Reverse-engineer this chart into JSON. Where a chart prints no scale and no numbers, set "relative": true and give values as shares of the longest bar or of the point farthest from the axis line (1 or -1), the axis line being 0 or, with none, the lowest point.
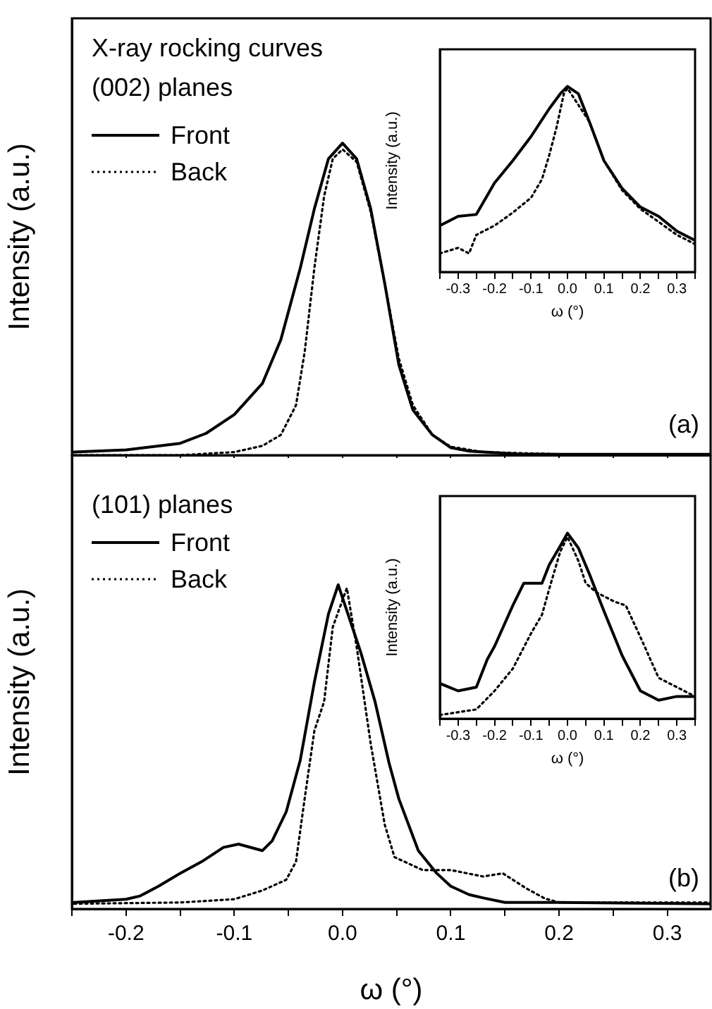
{
  "chart_data": [
    {
      "type": "line",
      "title": "X-ray rocking curves",
      "subtitle": "(002) planes",
      "ylabel": "Intensity (a.u.)",
      "relative": true,
      "legend": "top left",
      "tick_labels": false,
      "marker": "none",
      "annotations": [
        "(a)"
      ],
      "xlim": [
        -0.25,
        0.34
      ],
      "xticks": [
        {
          "value": -0.25,
          "label": null
        },
        {
          "value": -0.2,
          "label": null
        },
        {
          "value": -0.15,
          "label": null
        },
        {
          "value": -0.1,
          "label": null
        },
        {
          "value": -0.05,
          "label": null
        },
        {
          "value": 0,
          "label": null
        },
        {
          "value": 0.05,
          "label": null
        },
        {
          "value": 0.1,
          "label": null
        },
        {
          "value": 0.15,
          "label": null
        },
        {
          "value": 0.2,
          "label": null
        },
        {
          "value": 0.25,
          "label": null
        },
        {
          "value": 0.3,
          "label": null
        }
      ],
      "series": [
        {
          "name": "Front",
          "color": "#000000",
          "line_style": "solid",
          "x": [
            -0.248,
            -0.2,
            -0.15,
            -0.126,
            -0.1,
            -0.074,
            -0.057,
            -0.039,
            -0.026,
            -0.013,
            0,
            0.013,
            0.026,
            0.039,
            0.052,
            0.065,
            0.083,
            0.1,
            0.117,
            0.161,
            0.204,
            0.34
          ],
          "values": [
            0.01,
            0.017,
            0.038,
            0.07,
            0.13,
            0.23,
            0.37,
            0.6,
            0.79,
            0.95,
            1,
            0.95,
            0.79,
            0.55,
            0.29,
            0.145,
            0.065,
            0.024,
            0.013,
            0.004,
            0.003,
            0.003
          ]
        },
        {
          "name": "Back",
          "color": "#000000",
          "line_style": "dotted",
          "x": [
            -0.248,
            -0.15,
            -0.1,
            -0.074,
            -0.057,
            -0.043,
            -0.035,
            -0.026,
            -0.017,
            -0.009,
            0,
            0.013,
            0.026,
            0.039,
            0.052,
            0.065,
            0.083,
            0.1,
            0.13,
            0.2,
            0.34
          ],
          "values": [
            0,
            0,
            0.01,
            0.03,
            0.065,
            0.16,
            0.33,
            0.6,
            0.83,
            0.95,
            0.98,
            0.94,
            0.78,
            0.55,
            0.31,
            0.16,
            0.065,
            0.027,
            0.01,
            0.003,
            0.003
          ]
        }
      ]
    },
    {
      "type": "line",
      "xlabel": "ω (°)",
      "ylabel": "Intensity (a.u.)",
      "relative": true,
      "tick_labels": "x",
      "marker": "none",
      "xlim": [
        -0.35,
        0.35
      ],
      "xticks": [
        {
          "value": -0.35,
          "label": null
        },
        -0.3,
        {
          "value": -0.25,
          "label": null
        },
        -0.2,
        {
          "value": -0.15,
          "label": null
        },
        -0.1,
        {
          "value": -0.05,
          "label": null
        },
        {
          "value": 0,
          "label": "0.0"
        },
        {
          "value": 0.05,
          "label": null
        },
        0.1,
        {
          "value": 0.15,
          "label": null
        },
        0.2,
        {
          "value": 0.25,
          "label": null
        },
        0.3,
        {
          "value": 0.35,
          "label": null
        }
      ],
      "series": [
        {
          "color": "#000000",
          "line_style": "solid",
          "x": [
            -0.35,
            -0.3,
            -0.25,
            -0.2,
            -0.15,
            -0.1,
            -0.05,
            -0.02,
            0,
            0.03,
            0.06,
            0.1,
            0.15,
            0.2,
            0.25,
            0.3,
            0.35
          ],
          "values": [
            0.25,
            0.3,
            0.31,
            0.48,
            0.6,
            0.73,
            0.88,
            0.96,
            1,
            0.96,
            0.81,
            0.6,
            0.45,
            0.35,
            0.3,
            0.22,
            0.17
          ]
        },
        {
          "color": "#000000",
          "line_style": "dotted",
          "x": [
            -0.35,
            -0.3,
            -0.27,
            -0.25,
            -0.2,
            -0.15,
            -0.1,
            -0.07,
            -0.05,
            -0.03,
            -0.01,
            0,
            0.06,
            0.1,
            0.15,
            0.2,
            0.25,
            0.3,
            0.35
          ],
          "values": [
            0.1,
            0.13,
            0.1,
            0.2,
            0.25,
            0.32,
            0.4,
            0.5,
            0.63,
            0.78,
            0.96,
            0.99,
            0.81,
            0.6,
            0.44,
            0.34,
            0.27,
            0.2,
            0.15
          ]
        }
      ]
    },
    {
      "type": "line",
      "title": "(101) planes",
      "xlabel": "ω (°)",
      "ylabel": "Intensity (a.u.)",
      "relative": true,
      "legend": "top left",
      "tick_labels": "x",
      "marker": "none",
      "annotations": [
        "(b)"
      ],
      "xlim": [
        -0.25,
        0.34
      ],
      "xticks": [
        {
          "value": -0.25,
          "label": null
        },
        -0.2,
        {
          "value": -0.15,
          "label": null
        },
        -0.1,
        {
          "value": -0.05,
          "label": null
        },
        {
          "value": 0,
          "label": "0.0"
        },
        {
          "value": 0.05,
          "label": null
        },
        0.1,
        {
          "value": 0.15,
          "label": null
        },
        0.2,
        {
          "value": 0.25,
          "label": null
        },
        0.3
      ],
      "series": [
        {
          "name": "Front",
          "color": "#000000",
          "line_style": "solid",
          "x": [
            -0.248,
            -0.2,
            -0.187,
            -0.17,
            -0.15,
            -0.13,
            -0.11,
            -0.096,
            -0.074,
            -0.065,
            -0.052,
            -0.039,
            -0.026,
            -0.013,
            -0.004,
            0.009,
            0.017,
            0.03,
            0.043,
            0.052,
            0.07,
            0.087,
            0.1,
            0.117,
            0.13,
            0.15,
            0.2,
            0.34
          ],
          "values": [
            0.02,
            0.03,
            0.04,
            0.07,
            0.11,
            0.146,
            0.19,
            0.2,
            0.18,
            0.21,
            0.3,
            0.46,
            0.7,
            0.91,
            1,
            0.87,
            0.79,
            0.64,
            0.45,
            0.34,
            0.18,
            0.11,
            0.07,
            0.044,
            0.034,
            0.02,
            0.02,
            0.016
          ]
        },
        {
          "name": "Back",
          "color": "#000000",
          "line_style": "dotted",
          "x": [
            -0.248,
            -0.15,
            -0.1,
            -0.074,
            -0.052,
            -0.043,
            -0.035,
            -0.026,
            -0.017,
            -0.009,
            0.004,
            0.013,
            0.026,
            0.039,
            0.048,
            0.061,
            0.074,
            0.1,
            0.13,
            0.148,
            0.17,
            0.187,
            0.2,
            0.34
          ],
          "values": [
            0.016,
            0.02,
            0.03,
            0.057,
            0.09,
            0.146,
            0.34,
            0.55,
            0.64,
            0.87,
            0.99,
            0.81,
            0.51,
            0.26,
            0.16,
            0.14,
            0.12,
            0.12,
            0.1,
            0.11,
            0.063,
            0.032,
            0.02,
            0.02
          ]
        }
      ]
    },
    {
      "type": "line",
      "xlabel": "ω (°)",
      "ylabel": "Intensity (a.u.)",
      "relative": true,
      "tick_labels": "x",
      "marker": "none",
      "xlim": [
        -0.35,
        0.35
      ],
      "xticks": [
        {
          "value": -0.35,
          "label": null
        },
        -0.3,
        {
          "value": -0.25,
          "label": null
        },
        -0.2,
        {
          "value": -0.15,
          "label": null
        },
        -0.1,
        {
          "value": -0.05,
          "label": null
        },
        {
          "value": 0,
          "label": "0.0"
        },
        {
          "value": 0.05,
          "label": null
        },
        0.1,
        {
          "value": 0.15,
          "label": null
        },
        0.2,
        {
          "value": 0.25,
          "label": null
        },
        0.3,
        {
          "value": 0.35,
          "label": null
        }
      ],
      "series": [
        {
          "color": "#000000",
          "line_style": "solid",
          "x": [
            -0.35,
            -0.3,
            -0.25,
            -0.22,
            -0.2,
            -0.15,
            -0.12,
            -0.1,
            -0.07,
            -0.05,
            -0.02,
            0,
            0.03,
            0.06,
            0.1,
            0.15,
            0.2,
            0.25,
            0.3,
            0.35
          ],
          "values": [
            0.19,
            0.15,
            0.17,
            0.32,
            0.39,
            0.61,
            0.73,
            0.73,
            0.73,
            0.83,
            0.93,
            1,
            0.92,
            0.78,
            0.58,
            0.34,
            0.15,
            0.1,
            0.12,
            0.12
          ]
        },
        {
          "color": "#000000",
          "line_style": "dotted",
          "x": [
            -0.35,
            -0.25,
            -0.2,
            -0.15,
            -0.1,
            -0.07,
            -0.05,
            -0.02,
            0,
            0.03,
            0.05,
            0.08,
            0.1,
            0.13,
            0.16,
            0.2,
            0.25,
            0.3,
            0.35
          ],
          "values": [
            0.02,
            0.05,
            0.15,
            0.27,
            0.46,
            0.56,
            0.7,
            0.9,
            0.98,
            0.85,
            0.73,
            0.68,
            0.66,
            0.63,
            0.61,
            0.44,
            0.22,
            0.17,
            0.12
          ]
        }
      ]
    }
  ]
}
